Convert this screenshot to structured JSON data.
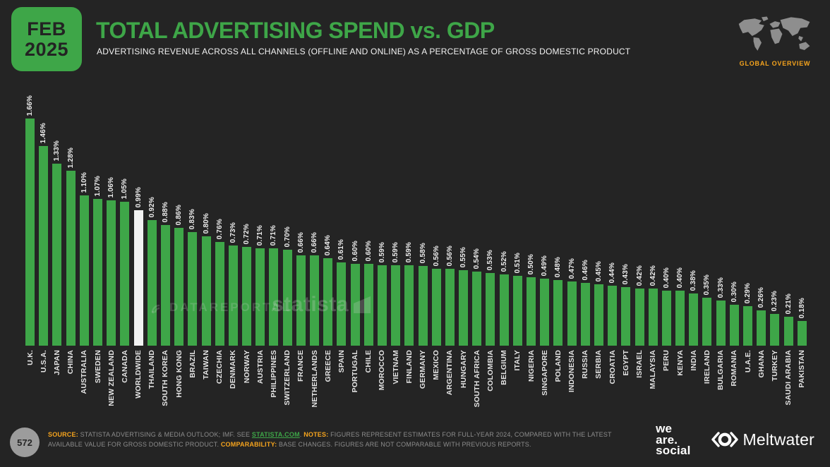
{
  "header": {
    "date_line1": "FEB",
    "date_line2": "2025",
    "title": "TOTAL ADVERTISING SPEND vs. GDP",
    "subtitle": "ADVERTISING REVENUE ACROSS ALL CHANNELS (OFFLINE AND ONLINE) AS A PERCENTAGE OF GROSS DOMESTIC PRODUCT",
    "overview_label": "GLOBAL OVERVIEW"
  },
  "chart_data": {
    "type": "bar",
    "title": "TOTAL ADVERTISING SPEND vs. GDP",
    "xlabel": "",
    "ylabel": "Advertising revenue as % of GDP",
    "ylim": [
      0,
      1.8
    ],
    "grid": false,
    "legend_position": "none",
    "bar_color": "#3EA648",
    "highlight_color": "#F2F2F2",
    "highlight_category": "WORLDWIDE",
    "categories": [
      "U.K.",
      "U.S.A.",
      "JAPAN",
      "CHINA",
      "AUSTRALIA",
      "SWEDEN",
      "NEW ZEALAND",
      "CANADA",
      "WORLDWIDE",
      "THAILAND",
      "SOUTH KOREA",
      "HONG KONG",
      "BRAZIL",
      "TAIWAN",
      "CZECHIA",
      "DENMARK",
      "NORWAY",
      "AUSTRIA",
      "PHILIPPINES",
      "SWITZERLAND",
      "FRANCE",
      "NETHERLANDS",
      "GREECE",
      "SPAIN",
      "PORTUGAL",
      "CHILE",
      "MOROCCO",
      "VIETNAM",
      "FINLAND",
      "GERMANY",
      "MEXICO",
      "ARGENTINA",
      "HUNGARY",
      "SOUTH AFRICA",
      "COLOMBIA",
      "BELGIUM",
      "ITALY",
      "NIGERIA",
      "SINGAPORE",
      "POLAND",
      "INDONESIA",
      "RUSSIA",
      "SERBIA",
      "CROATIA",
      "EGYPT",
      "ISRAEL",
      "MALAYSIA",
      "PERU",
      "KENYA",
      "INDIA",
      "IRELAND",
      "BULGARIA",
      "ROMANIA",
      "U.A.E.",
      "GHANA",
      "TURKEY",
      "SAUDI ARABIA",
      "PAKISTAN"
    ],
    "values": [
      1.66,
      1.46,
      1.33,
      1.28,
      1.1,
      1.07,
      1.06,
      1.05,
      0.99,
      0.92,
      0.88,
      0.86,
      0.83,
      0.8,
      0.76,
      0.73,
      0.72,
      0.71,
      0.71,
      0.7,
      0.66,
      0.66,
      0.64,
      0.61,
      0.6,
      0.6,
      0.59,
      0.59,
      0.59,
      0.58,
      0.56,
      0.56,
      0.55,
      0.54,
      0.53,
      0.52,
      0.51,
      0.5,
      0.49,
      0.48,
      0.47,
      0.46,
      0.45,
      0.44,
      0.43,
      0.42,
      0.42,
      0.4,
      0.4,
      0.38,
      0.35,
      0.33,
      0.3,
      0.29,
      0.26,
      0.23,
      0.21,
      0.18
    ],
    "value_labels": [
      "1.66%",
      "1.46%",
      "1.33%",
      "1.28%",
      "1.10%",
      "1.07%",
      "1.06%",
      "1.05%",
      "0.99%",
      "0.92%",
      "0.88%",
      "0.86%",
      "0.83%",
      "0.80%",
      "0.76%",
      "0.73%",
      "0.72%",
      "0.71%",
      "0.71%",
      "0.70%",
      "0.66%",
      "0.66%",
      "0.64%",
      "0.61%",
      "0.60%",
      "0.60%",
      "0.59%",
      "0.59%",
      "0.59%",
      "0.58%",
      "0.56%",
      "0.56%",
      "0.55%",
      "0.54%",
      "0.53%",
      "0.52%",
      "0.51%",
      "0.50%",
      "0.49%",
      "0.48%",
      "0.47%",
      "0.46%",
      "0.45%",
      "0.44%",
      "0.43%",
      "0.42%",
      "0.42%",
      "0.40%",
      "0.40%",
      "0.38%",
      "0.35%",
      "0.33%",
      "0.30%",
      "0.29%",
      "0.26%",
      "0.23%",
      "0.21%",
      "0.18%"
    ]
  },
  "watermarks": {
    "datareportal": "DATAREPORTAL",
    "statista": "statista"
  },
  "footer": {
    "page_number": "572",
    "source_label": "SOURCE:",
    "source_text": " STATISTA ADVERTISING & MEDIA OUTLOOK; IMF. SEE ",
    "source_link": "STATISTA.COM",
    "after_link": ". ",
    "notes_label": "NOTES:",
    "notes_text": " FIGURES REPRESENT ESTIMATES FOR FULL-YEAR 2024, COMPARED WITH THE LATEST AVAILABLE VALUE FOR GROSS DOMESTIC PRODUCT. ",
    "comparability_label": "COMPARABILITY:",
    "comparability_text": " BASE CHANGES. FIGURES ARE NOT COMPARABLE WITH PREVIOUS REPORTS."
  },
  "branding": {
    "we_are_social": [
      "we",
      "are.",
      "social"
    ],
    "meltwater": "Meltwater"
  },
  "colors": {
    "background": "#242424",
    "accent_green": "#3EA648",
    "accent_orange": "#F6A41D",
    "bar_highlight": "#F2F2F2",
    "map_gray": "#8e8e8e"
  }
}
